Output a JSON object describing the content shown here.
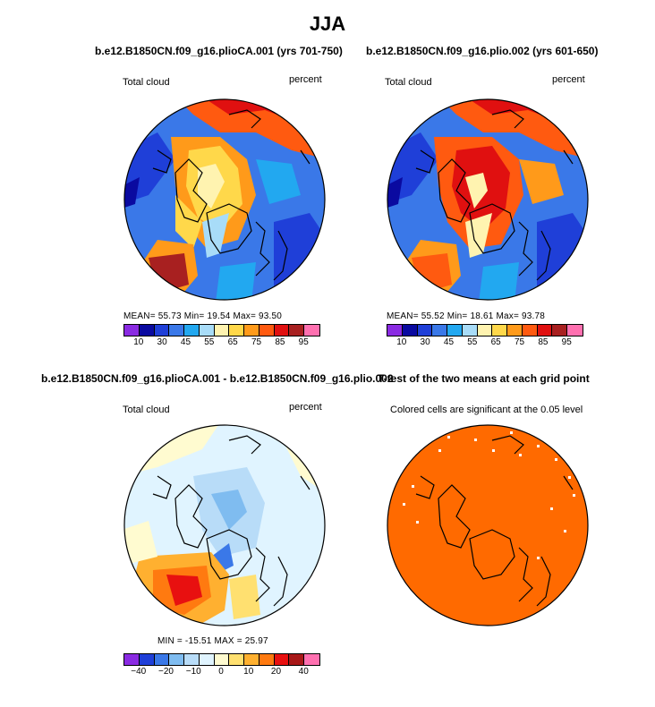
{
  "title": "JJA",
  "panels": [
    {
      "title": "b.e12.B1850CN.f09_g16.plioCA.001 (yrs 701-750)",
      "left_label": "Total cloud",
      "right_label": "percent",
      "stats": "MEAN=    55.73   Min=    19.54   Max=    93.50",
      "colorbar_ticks": [
        "10",
        "30",
        "45",
        "55",
        "65",
        "75",
        "85",
        "95"
      ]
    },
    {
      "title": "b.e12.B1850CN.f09_g16.plio.002 (yrs 601-650)",
      "left_label": "Total cloud",
      "right_label": "percent",
      "stats": "MEAN=    55.52   Min=    18.61   Max=    93.78",
      "colorbar_ticks": [
        "10",
        "30",
        "45",
        "55",
        "65",
        "75",
        "85",
        "95"
      ]
    },
    {
      "title": "b.e12.B1850CN.f09_g16.plioCA.001 - b.e12.B1850CN.f09_g16.plio.002",
      "left_label": "Total cloud",
      "right_label": "percent",
      "stats": "MIN  =  -15.51   MAX  =    25.97",
      "colorbar_ticks": [
        "-40",
        "-20",
        "-10",
        "0",
        "10",
        "20",
        "40"
      ]
    },
    {
      "title": "T-test of the two means at each grid point",
      "left_label": "Colored cells are significant at the 0.05 level"
    }
  ],
  "colors": {
    "abs_scale": [
      "#8a2be2",
      "#0a0aa0",
      "#1f3fd8",
      "#3a78e8",
      "#22a8f0",
      "#a8dcf8",
      "#fff3b0",
      "#ffd84a",
      "#ff9a1a",
      "#ff5a10",
      "#e01010",
      "#a82020",
      "#ff70b0"
    ],
    "diff_scale": [
      "#8a2be2",
      "#1f3fd8",
      "#3a78e8",
      "#7fbcf0",
      "#b8dcf8",
      "#e0f4ff",
      "#fffbd0",
      "#ffe070",
      "#ffb030",
      "#ff7a10",
      "#e81010",
      "#a81818",
      "#ff70b0"
    ],
    "significance": "#ff6a00"
  }
}
